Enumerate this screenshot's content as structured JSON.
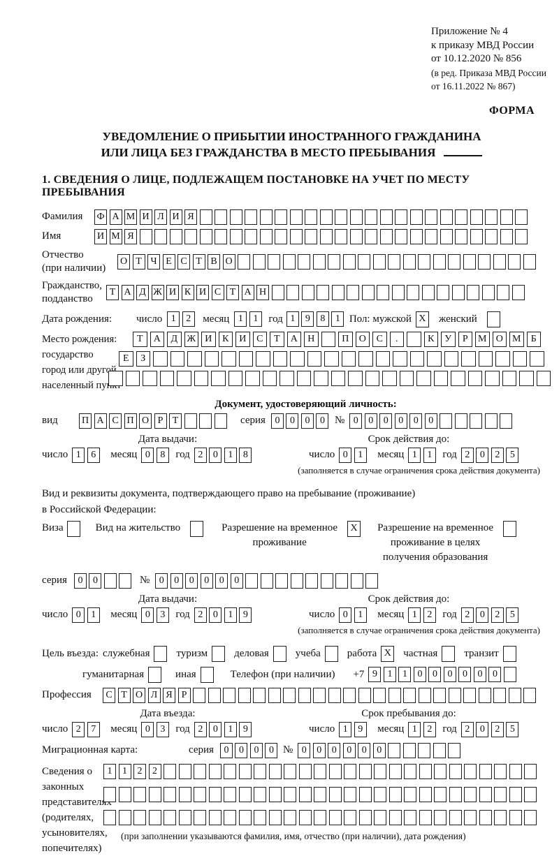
{
  "header": {
    "annex_lines": [
      "Приложение № 4",
      "к приказу МВД России",
      "от 10.12.2020 № 856"
    ],
    "edition_lines": [
      "(в ред. Приказа МВД России",
      "от 16.11.2022 № 867)"
    ],
    "form_label": "ФОРМА"
  },
  "title": {
    "line1": "УВЕДОМЛЕНИЕ О ПРИБЫТИИ ИНОСТРАННОГО ГРАЖДАНИНА",
    "line2": "ИЛИ ЛИЦА БЕЗ ГРАЖДАНСТВА В МЕСТО ПРЕБЫВАНИЯ"
  },
  "section1_heading": "1. СВЕДЕНИЯ О ЛИЦЕ, ПОДЛЕЖАЩЕМ ПОСТАНОВКЕ НА УЧЕТ ПО МЕСТУ ПРЕБЫВАНИЯ",
  "fields": {
    "surname": {
      "label": "Фамилия",
      "boxes": {
        "value": "ФАМИЛИЯ",
        "total": 29
      }
    },
    "given_name": {
      "label": "Имя",
      "boxes": {
        "value": "ИМЯ",
        "total": 29
      }
    },
    "patronymic": {
      "label": "Отчество",
      "label2": "(при наличии)",
      "boxes": {
        "value": "ОТЧЕСТВО",
        "total": 28
      }
    },
    "citizenship": {
      "label": "Гражданство,",
      "label2": "подданство",
      "boxes": {
        "value": "ТАДЖИКИСТАН",
        "total": 28
      }
    },
    "birth_date": {
      "label": "Дата рождения:",
      "day_label": "число",
      "day": {
        "value": "12",
        "total": 2
      },
      "month_label": "месяц",
      "month": {
        "value": "11",
        "total": 2
      },
      "year_label": "год",
      "year": {
        "value": "1981",
        "total": 4
      },
      "sex_label": "Пол: мужской",
      "male_check": "X",
      "female_label": "женский",
      "female_check": ""
    },
    "birth_place": {
      "label_lines": [
        "Место рождения:",
        "государство",
        "город или другой",
        "населенный пункт"
      ],
      "row1": {
        "value": "ТАДЖИКИСТАН ПОС. КУРМОМБ",
        "total": 24
      },
      "row2": {
        "value": "ЕЗ",
        "total": 25
      },
      "row3": {
        "value": "",
        "total": 26
      }
    },
    "identity_doc": {
      "heading": "Документ, удостоверяющий личность:",
      "type_label": "вид",
      "type": {
        "value": "ПАСПОРТ",
        "total": 10
      },
      "series_label": "серия",
      "series": {
        "value": "0000",
        "total": 4
      },
      "number_label": "№",
      "number": {
        "value": "000000",
        "total": 11
      },
      "issue_label": "Дата выдачи:",
      "issue_day_label": "число",
      "issue_day": {
        "value": "16",
        "total": 2
      },
      "issue_month_label": "месяц",
      "issue_month": {
        "value": "08",
        "total": 2
      },
      "issue_year_label": "год",
      "issue_year": {
        "value": "2018",
        "total": 4
      },
      "expiry_label": "Срок действия до:",
      "expiry_day_label": "число",
      "expiry_day": {
        "value": "01",
        "total": 2
      },
      "expiry_month_label": "месяц",
      "expiry_month": {
        "value": "11",
        "total": 2
      },
      "expiry_year_label": "год",
      "expiry_year": {
        "value": "2025",
        "total": 4
      },
      "note": "(заполняется в случае ограничения срока действия документа)"
    },
    "residence_doc": {
      "intro1": "Вид и реквизиты документа, подтверждающего право на пребывание (проживание)",
      "intro2": "в Российской Федерации:",
      "visa_label": "Виза",
      "visa_check": "",
      "residence_label": "Вид на жительство",
      "residence_check": "",
      "temp_lines": [
        "Разрешение на временное",
        "проживание"
      ],
      "temp_check": "X",
      "temp_edu_lines": [
        "Разрешение на временное",
        "проживание в целях",
        "получения образования"
      ],
      "temp_edu_check": "",
      "series_label": "серия",
      "series": {
        "value": "00",
        "total": 4
      },
      "number_label": "№",
      "number": {
        "value": "000000",
        "total": 15
      },
      "issue_label": "Дата выдачи:",
      "issue_day_label": "число",
      "issue_day": {
        "value": "01",
        "total": 2
      },
      "issue_month_label": "месяц",
      "issue_month": {
        "value": "03",
        "total": 2
      },
      "issue_year_label": "год",
      "issue_year": {
        "value": "2019",
        "total": 4
      },
      "expiry_label": "Срок действия до:",
      "expiry_day_label": "число",
      "expiry_day": {
        "value": "01",
        "total": 2
      },
      "expiry_month_label": "месяц",
      "expiry_month": {
        "value": "12",
        "total": 2
      },
      "expiry_year_label": "год",
      "expiry_year": {
        "value": "2025",
        "total": 4
      },
      "note": "(заполняется в случае ограничения срока действия документа)"
    },
    "purpose": {
      "label": "Цель въезда:",
      "items": [
        {
          "label": "служебная",
          "check": ""
        },
        {
          "label": "туризм",
          "check": ""
        },
        {
          "label": "деловая",
          "check": ""
        },
        {
          "label": "учеба",
          "check": ""
        },
        {
          "label": "работа",
          "check": "X"
        },
        {
          "label": "частная",
          "check": ""
        },
        {
          "label": "транзит",
          "check": ""
        }
      ],
      "items2": [
        {
          "label": "гуманитарная",
          "check": ""
        },
        {
          "label": "иная",
          "check": ""
        }
      ],
      "phone_label": "Телефон (при наличии)",
      "phone_prefix": "+7",
      "phone": {
        "value": "911000000",
        "total": 10
      }
    },
    "profession": {
      "label": "Профессия",
      "boxes": {
        "value": "СТОЛЯР",
        "total": 29
      }
    },
    "entry": {
      "date_label": "Дата въезда:",
      "day_label": "число",
      "day": {
        "value": "27",
        "total": 2
      },
      "month_label": "месяц",
      "month": {
        "value": "03",
        "total": 2
      },
      "year_label": "год",
      "year": {
        "value": "2019",
        "total": 4
      },
      "until_label": "Срок пребывания до:",
      "until_day_label": "число",
      "until_day": {
        "value": "19",
        "total": 2
      },
      "until_month_label": "месяц",
      "until_month": {
        "value": "12",
        "total": 2
      },
      "until_year_label": "год",
      "until_year": {
        "value": "2025",
        "total": 4
      }
    },
    "migration_card": {
      "label": "Миграционная карта:",
      "series_label": "серия",
      "series": {
        "value": "0000",
        "total": 4
      },
      "number_label": "№",
      "number": {
        "value": "000000",
        "total": 11
      }
    },
    "representatives": {
      "label_lines": [
        "Сведения о",
        "законных",
        "представителях",
        "(родителях,",
        "усыновителях,",
        "попечителях)"
      ],
      "row1": {
        "value": "1122",
        "total": 29
      },
      "row2": {
        "value": "",
        "total": 29
      },
      "row3": {
        "value": "",
        "total": 29
      },
      "note": "(при заполнении указываются фамилия, имя, отчество (при наличии), дата рождения)"
    }
  }
}
